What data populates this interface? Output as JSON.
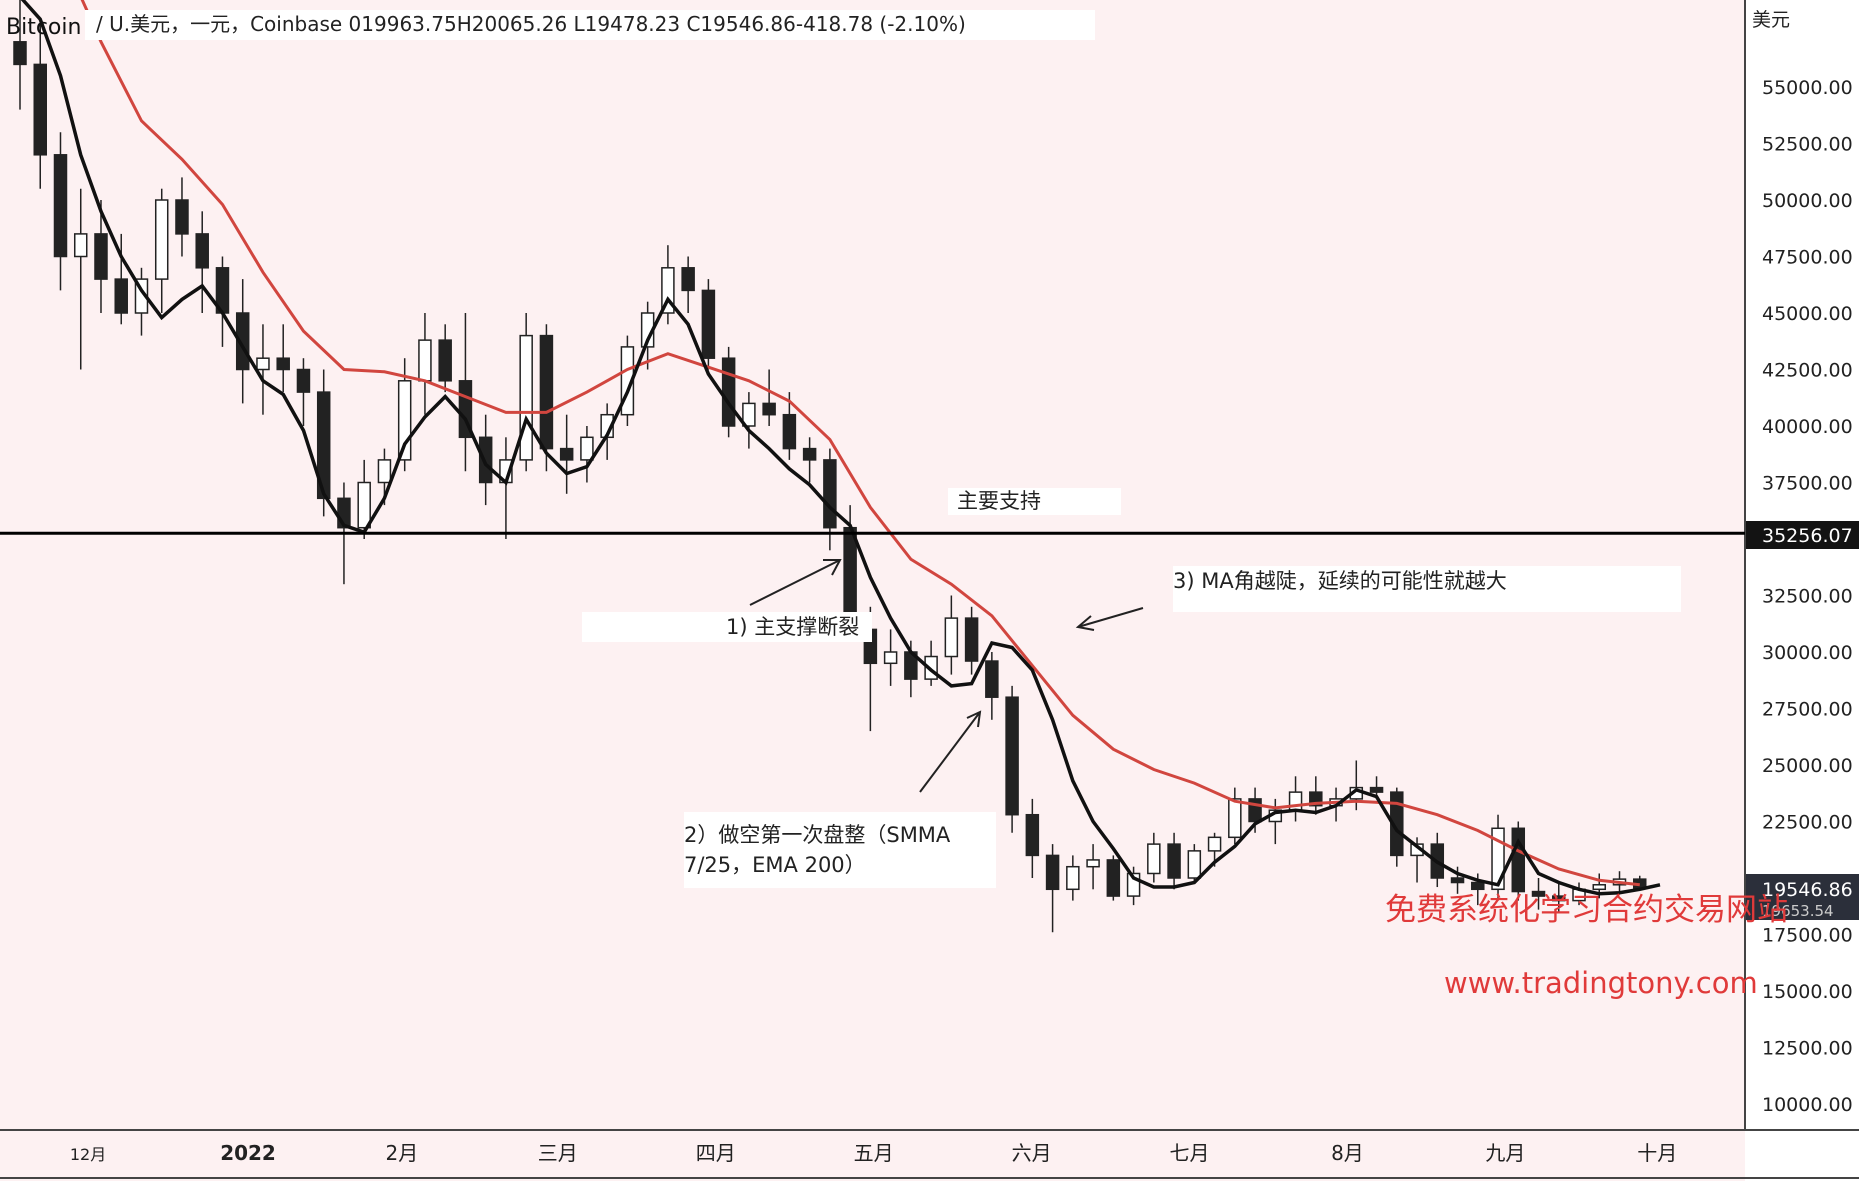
{
  "header": {
    "symbol": "Bitcoin",
    "info": "/ U.美元，一元，Coinbase 019963.75H20065.26 L19478.23 C19546.86-418.78 (-2.10%)"
  },
  "annotations": {
    "support_label": "主要支持",
    "note1": "1) 主支撑断裂",
    "note2_line1": "2）做空第一次盘整（SMMA",
    "note2_line2": "7/25，EMA 200）",
    "note3": "3) MA角越陡，延续的可能性就越大"
  },
  "watermark": {
    "title": "免费系统化学习合约交易网站",
    "url": "www.tradingtony.com",
    "color": "#e03a3a"
  },
  "colors": {
    "background": "#fdf1f2",
    "candle": "#222222",
    "smma": "#111111",
    "ema200": "#d1463f",
    "support_line": "#000000"
  },
  "chart_data": {
    "type": "line",
    "y_axis_unit": "美元",
    "y_ticks": [
      55000,
      52500,
      50000,
      47500,
      45000,
      42500,
      40000,
      37500,
      32500,
      30000,
      27500,
      25000,
      22500,
      17500,
      15000,
      12500,
      10000
    ],
    "y_tick_labels": [
      "55000.00",
      "52500.00",
      "50000.00",
      "47500.00",
      "45000.00",
      "42500.00",
      "40000.00",
      "37500.00",
      "32500.00",
      "30000.00",
      "27500.00",
      "25000.00",
      "22500.00",
      "17500.00",
      "15000.00",
      "12500.00",
      "10000.00"
    ],
    "x_ticks": [
      "12月",
      "2022",
      "2月",
      "三月",
      "四月",
      "五月",
      "六月",
      "七月",
      "8月",
      "九月",
      "十月"
    ],
    "x_tick_positions": [
      0.3,
      8.2,
      15.8,
      23.5,
      31.3,
      39.1,
      46.9,
      54.7,
      62.5,
      70.3,
      77.8
    ],
    "price_labels": {
      "support": "35256.07",
      "last": "19546.86",
      "smma_last": "19653.54"
    },
    "support_level": 35256.07,
    "series": [
      {
        "name": "SMMA",
        "x": [
          0,
          1,
          2,
          3,
          4,
          5,
          6,
          7,
          8,
          9,
          10,
          11,
          12,
          13,
          14,
          15,
          16,
          17,
          18,
          19,
          20,
          21,
          22,
          23,
          24,
          25,
          26,
          27,
          28,
          29,
          30,
          31,
          32,
          33,
          34,
          35,
          36,
          37,
          38,
          39,
          40,
          41,
          42,
          43,
          44,
          45,
          46,
          47,
          48,
          49,
          50,
          51,
          52,
          53,
          54,
          55,
          56,
          57,
          58,
          59,
          60,
          61,
          62,
          63,
          64,
          65,
          66,
          67,
          68,
          69,
          70,
          71,
          72,
          73,
          74,
          75,
          76,
          77,
          78,
          79,
          80,
          81
        ],
        "y": [
          59000,
          58000,
          55500,
          52000,
          49500,
          47500,
          46000,
          44800,
          45600,
          46200,
          45000,
          43500,
          42000,
          41400,
          39800,
          37000,
          35600,
          35300,
          36800,
          39200,
          40400,
          41300,
          40300,
          38300,
          37500,
          40300,
          38800,
          37900,
          38200,
          39600,
          41500,
          43800,
          45600,
          44500,
          42300,
          41000,
          39800,
          39000,
          38100,
          37400,
          36400,
          35600,
          33300,
          31500,
          30000,
          29200,
          28500,
          28600,
          30400,
          30200,
          29200,
          27000,
          24300,
          22500,
          21300,
          20000,
          19600,
          19600,
          19800,
          20700,
          21400,
          22400,
          22900,
          23000,
          22900,
          23200,
          23900,
          23600,
          22100,
          21400,
          20700,
          20200,
          19900,
          19700,
          21600,
          20200,
          19800,
          19500,
          19300,
          19350,
          19500,
          19700
        ]
      },
      {
        "name": "EMA 200",
        "x": [
          0,
          2,
          4,
          6,
          8,
          10,
          12,
          14,
          16,
          18,
          20,
          22,
          24,
          26,
          28,
          30,
          32,
          34,
          36,
          38,
          40,
          42,
          44,
          46,
          48,
          50,
          52,
          54,
          56,
          58,
          60,
          62,
          64,
          66,
          68,
          70,
          72,
          74,
          76,
          78,
          80
        ],
        "y": [
          63500,
          61000,
          57000,
          53500,
          51800,
          49800,
          46800,
          44200,
          42500,
          42400,
          42000,
          41300,
          40600,
          40600,
          41500,
          42500,
          43200,
          42600,
          42000,
          41100,
          39400,
          36400,
          34100,
          33000,
          31600,
          29400,
          27200,
          25700,
          24800,
          24200,
          23400,
          23100,
          23300,
          23400,
          23300,
          22800,
          22100,
          21200,
          20400,
          19900,
          19700
        ]
      }
    ],
    "candles": [
      [
        57000,
        59500,
        54000,
        56000
      ],
      [
        56000,
        58000,
        50500,
        52000
      ],
      [
        52000,
        53000,
        46000,
        47500
      ],
      [
        47500,
        50500,
        42500,
        48500
      ],
      [
        48500,
        50000,
        45000,
        46500
      ],
      [
        46500,
        48500,
        44500,
        45000
      ],
      [
        45000,
        47000,
        44000,
        46500
      ],
      [
        46500,
        50500,
        45000,
        50000
      ],
      [
        50000,
        51000,
        47500,
        48500
      ],
      [
        48500,
        49500,
        45000,
        47000
      ],
      [
        47000,
        47500,
        43500,
        45000
      ],
      [
        45000,
        46500,
        41000,
        42500
      ],
      [
        42500,
        44500,
        40500,
        43000
      ],
      [
        43000,
        44500,
        41500,
        42500
      ],
      [
        42500,
        43000,
        40000,
        41500
      ],
      [
        41500,
        42500,
        36000,
        36800
      ],
      [
        36800,
        37500,
        33000,
        35500
      ],
      [
        35500,
        38500,
        35000,
        37500
      ],
      [
        37500,
        39000,
        36500,
        38500
      ],
      [
        38500,
        43000,
        38000,
        42000
      ],
      [
        42000,
        45000,
        40500,
        43800
      ],
      [
        43800,
        44500,
        41500,
        42000
      ],
      [
        42000,
        45000,
        38000,
        39500
      ],
      [
        39500,
        40500,
        36500,
        37500
      ],
      [
        37500,
        39500,
        35000,
        38500
      ],
      [
        38500,
        45000,
        38000,
        44000
      ],
      [
        44000,
        44500,
        38000,
        39000
      ],
      [
        39000,
        40500,
        37000,
        38500
      ],
      [
        38500,
        40000,
        37500,
        39500
      ],
      [
        39500,
        41000,
        38500,
        40500
      ],
      [
        40500,
        44000,
        40000,
        43500
      ],
      [
        43500,
        45500,
        42500,
        45000
      ],
      [
        45000,
        48000,
        44500,
        47000
      ],
      [
        47000,
        47500,
        45000,
        46000
      ],
      [
        46000,
        46500,
        42500,
        43000
      ],
      [
        43000,
        43500,
        39500,
        40000
      ],
      [
        40000,
        41500,
        39000,
        41000
      ],
      [
        41000,
        42500,
        40000,
        40500
      ],
      [
        40500,
        41500,
        38500,
        39000
      ],
      [
        39000,
        39500,
        37500,
        38500
      ],
      [
        38500,
        39000,
        34500,
        35500
      ],
      [
        35500,
        36500,
        30500,
        31000
      ],
      [
        31000,
        32000,
        26500,
        29500
      ],
      [
        29500,
        31000,
        28500,
        30000
      ],
      [
        30000,
        30500,
        28000,
        28800
      ],
      [
        28800,
        30500,
        28500,
        29800
      ],
      [
        29800,
        32500,
        29000,
        31500
      ],
      [
        31500,
        32000,
        29000,
        29600
      ],
      [
        29600,
        30000,
        27000,
        28000
      ],
      [
        28000,
        28500,
        22000,
        22800
      ],
      [
        22800,
        23500,
        20000,
        21000
      ],
      [
        21000,
        21500,
        17600,
        19500
      ],
      [
        19500,
        21000,
        19000,
        20500
      ],
      [
        20500,
        21500,
        19500,
        20800
      ],
      [
        20800,
        21000,
        19000,
        19200
      ],
      [
        19200,
        20500,
        18800,
        20200
      ],
      [
        20200,
        22000,
        19800,
        21500
      ],
      [
        21500,
        22000,
        19500,
        20000
      ],
      [
        20000,
        21500,
        19800,
        21200
      ],
      [
        21200,
        22000,
        20500,
        21800
      ],
      [
        21800,
        24000,
        21500,
        23500
      ],
      [
        23500,
        24000,
        22000,
        22500
      ],
      [
        22500,
        23500,
        21500,
        23000
      ],
      [
        23000,
        24500,
        22500,
        23800
      ],
      [
        23800,
        24500,
        22800,
        23200
      ],
      [
        23200,
        24000,
        22500,
        23500
      ],
      [
        23500,
        25200,
        23000,
        24000
      ],
      [
        24000,
        24500,
        23500,
        23800
      ],
      [
        23800,
        24000,
        20500,
        21000
      ],
      [
        21000,
        21800,
        19800,
        21500
      ],
      [
        21500,
        22000,
        19600,
        20000
      ],
      [
        20000,
        20500,
        19300,
        19800
      ],
      [
        19800,
        20200,
        18800,
        19500
      ],
      [
        19500,
        22800,
        19000,
        22200
      ],
      [
        22200,
        22500,
        19000,
        19400
      ],
      [
        19400,
        20000,
        18600,
        19200
      ],
      [
        19200,
        19800,
        18500,
        19000
      ],
      [
        19000,
        19800,
        18800,
        19500
      ],
      [
        19500,
        20200,
        19100,
        19700
      ],
      [
        19700,
        20300,
        19300,
        19950
      ],
      [
        19950,
        20100,
        19480,
        19550
      ]
    ]
  }
}
